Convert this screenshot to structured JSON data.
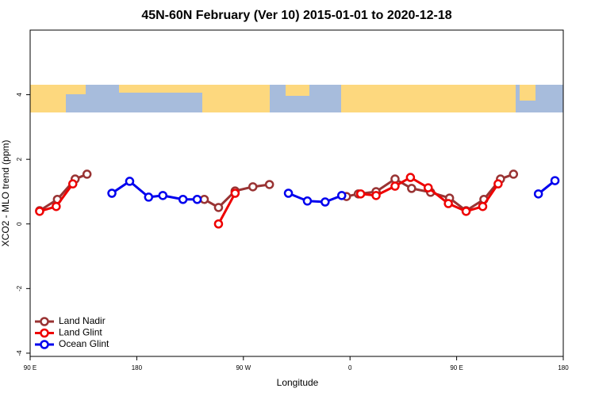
{
  "chart_data": {
    "type": "line",
    "title": "45N-60N February (Ver 10)   2015-01-01 to 2020-12-18",
    "x_label": "Longitude",
    "y_label": "XCO2 - MLO trend (ppm)",
    "xlim": [
      90,
      540
    ],
    "ylim": [
      -4.1,
      6
    ],
    "xticks": [
      {
        "value": 90,
        "label": "90 E"
      },
      180,
      {
        "value": 270,
        "label": "90 W"
      },
      {
        "value": 360,
        "label": "0"
      },
      {
        "value": 450,
        "label": "90 E"
      },
      {
        "value": 540,
        "label": "180"
      }
    ],
    "yticks": [
      -4,
      -2,
      0,
      2,
      4
    ],
    "legend": "bottom-left",
    "series": [
      {
        "name": "Land Nadir",
        "color": "#993333",
        "x": [
          98,
          113,
          128,
          138,
          null,
          237,
          249,
          263,
          278,
          292,
          null,
          357,
          367,
          382,
          398,
          412,
          428,
          444,
          458,
          473,
          487,
          498
        ],
        "values": [
          0.41,
          0.76,
          1.39,
          1.54,
          null,
          0.76,
          0.51,
          1.02,
          1.15,
          1.22,
          null,
          0.85,
          0.93,
          1.0,
          1.39,
          1.1,
          0.98,
          0.8,
          0.41,
          0.76,
          1.39,
          1.54
        ]
      },
      {
        "name": "Land Glint",
        "color": "#ee0000",
        "x": [
          98,
          112,
          126,
          null,
          249,
          263,
          null,
          369,
          382,
          398,
          411,
          426,
          443,
          458,
          472,
          485
        ],
        "values": [
          0.39,
          0.54,
          1.24,
          null,
          0,
          0.95,
          null,
          0.93,
          0.88,
          1.17,
          1.44,
          1.12,
          0.63,
          0.39,
          0.54,
          1.24
        ]
      },
      {
        "name": "Ocean Glint",
        "color": "#0000ee",
        "x": [
          159,
          174,
          190,
          202,
          219,
          231,
          null,
          308,
          324,
          339,
          353,
          null,
          519,
          533
        ],
        "values": [
          0.95,
          1.32,
          0.83,
          0.88,
          0.76,
          0.76,
          null,
          0.95,
          0.71,
          0.68,
          0.88,
          null,
          0.93,
          1.34
        ]
      }
    ]
  }
}
